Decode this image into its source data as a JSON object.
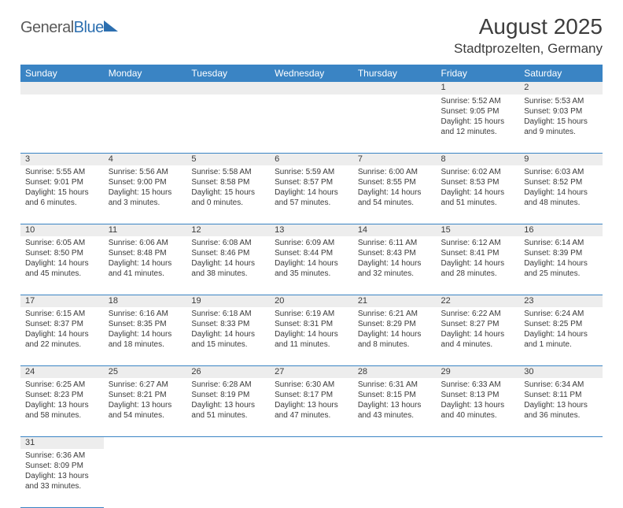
{
  "logo": {
    "part1": "General",
    "part2": "Blue"
  },
  "header": {
    "month_title": "August 2025",
    "location": "Stadtprozelten, Germany"
  },
  "colors": {
    "header_bg": "#3a84c4",
    "header_text": "#ffffff",
    "daynum_bg": "#ededed",
    "cell_border": "#3a84c4",
    "text": "#3a3a3a"
  },
  "day_headers": [
    "Sunday",
    "Monday",
    "Tuesday",
    "Wednesday",
    "Thursday",
    "Friday",
    "Saturday"
  ],
  "weeks": [
    [
      null,
      null,
      null,
      null,
      null,
      {
        "n": "1",
        "sr": "Sunrise: 5:52 AM",
        "ss": "Sunset: 9:05 PM",
        "dl": "Daylight: 15 hours and 12 minutes."
      },
      {
        "n": "2",
        "sr": "Sunrise: 5:53 AM",
        "ss": "Sunset: 9:03 PM",
        "dl": "Daylight: 15 hours and 9 minutes."
      }
    ],
    [
      {
        "n": "3",
        "sr": "Sunrise: 5:55 AM",
        "ss": "Sunset: 9:01 PM",
        "dl": "Daylight: 15 hours and 6 minutes."
      },
      {
        "n": "4",
        "sr": "Sunrise: 5:56 AM",
        "ss": "Sunset: 9:00 PM",
        "dl": "Daylight: 15 hours and 3 minutes."
      },
      {
        "n": "5",
        "sr": "Sunrise: 5:58 AM",
        "ss": "Sunset: 8:58 PM",
        "dl": "Daylight: 15 hours and 0 minutes."
      },
      {
        "n": "6",
        "sr": "Sunrise: 5:59 AM",
        "ss": "Sunset: 8:57 PM",
        "dl": "Daylight: 14 hours and 57 minutes."
      },
      {
        "n": "7",
        "sr": "Sunrise: 6:00 AM",
        "ss": "Sunset: 8:55 PM",
        "dl": "Daylight: 14 hours and 54 minutes."
      },
      {
        "n": "8",
        "sr": "Sunrise: 6:02 AM",
        "ss": "Sunset: 8:53 PM",
        "dl": "Daylight: 14 hours and 51 minutes."
      },
      {
        "n": "9",
        "sr": "Sunrise: 6:03 AM",
        "ss": "Sunset: 8:52 PM",
        "dl": "Daylight: 14 hours and 48 minutes."
      }
    ],
    [
      {
        "n": "10",
        "sr": "Sunrise: 6:05 AM",
        "ss": "Sunset: 8:50 PM",
        "dl": "Daylight: 14 hours and 45 minutes."
      },
      {
        "n": "11",
        "sr": "Sunrise: 6:06 AM",
        "ss": "Sunset: 8:48 PM",
        "dl": "Daylight: 14 hours and 41 minutes."
      },
      {
        "n": "12",
        "sr": "Sunrise: 6:08 AM",
        "ss": "Sunset: 8:46 PM",
        "dl": "Daylight: 14 hours and 38 minutes."
      },
      {
        "n": "13",
        "sr": "Sunrise: 6:09 AM",
        "ss": "Sunset: 8:44 PM",
        "dl": "Daylight: 14 hours and 35 minutes."
      },
      {
        "n": "14",
        "sr": "Sunrise: 6:11 AM",
        "ss": "Sunset: 8:43 PM",
        "dl": "Daylight: 14 hours and 32 minutes."
      },
      {
        "n": "15",
        "sr": "Sunrise: 6:12 AM",
        "ss": "Sunset: 8:41 PM",
        "dl": "Daylight: 14 hours and 28 minutes."
      },
      {
        "n": "16",
        "sr": "Sunrise: 6:14 AM",
        "ss": "Sunset: 8:39 PM",
        "dl": "Daylight: 14 hours and 25 minutes."
      }
    ],
    [
      {
        "n": "17",
        "sr": "Sunrise: 6:15 AM",
        "ss": "Sunset: 8:37 PM",
        "dl": "Daylight: 14 hours and 22 minutes."
      },
      {
        "n": "18",
        "sr": "Sunrise: 6:16 AM",
        "ss": "Sunset: 8:35 PM",
        "dl": "Daylight: 14 hours and 18 minutes."
      },
      {
        "n": "19",
        "sr": "Sunrise: 6:18 AM",
        "ss": "Sunset: 8:33 PM",
        "dl": "Daylight: 14 hours and 15 minutes."
      },
      {
        "n": "20",
        "sr": "Sunrise: 6:19 AM",
        "ss": "Sunset: 8:31 PM",
        "dl": "Daylight: 14 hours and 11 minutes."
      },
      {
        "n": "21",
        "sr": "Sunrise: 6:21 AM",
        "ss": "Sunset: 8:29 PM",
        "dl": "Daylight: 14 hours and 8 minutes."
      },
      {
        "n": "22",
        "sr": "Sunrise: 6:22 AM",
        "ss": "Sunset: 8:27 PM",
        "dl": "Daylight: 14 hours and 4 minutes."
      },
      {
        "n": "23",
        "sr": "Sunrise: 6:24 AM",
        "ss": "Sunset: 8:25 PM",
        "dl": "Daylight: 14 hours and 1 minute."
      }
    ],
    [
      {
        "n": "24",
        "sr": "Sunrise: 6:25 AM",
        "ss": "Sunset: 8:23 PM",
        "dl": "Daylight: 13 hours and 58 minutes."
      },
      {
        "n": "25",
        "sr": "Sunrise: 6:27 AM",
        "ss": "Sunset: 8:21 PM",
        "dl": "Daylight: 13 hours and 54 minutes."
      },
      {
        "n": "26",
        "sr": "Sunrise: 6:28 AM",
        "ss": "Sunset: 8:19 PM",
        "dl": "Daylight: 13 hours and 51 minutes."
      },
      {
        "n": "27",
        "sr": "Sunrise: 6:30 AM",
        "ss": "Sunset: 8:17 PM",
        "dl": "Daylight: 13 hours and 47 minutes."
      },
      {
        "n": "28",
        "sr": "Sunrise: 6:31 AM",
        "ss": "Sunset: 8:15 PM",
        "dl": "Daylight: 13 hours and 43 minutes."
      },
      {
        "n": "29",
        "sr": "Sunrise: 6:33 AM",
        "ss": "Sunset: 8:13 PM",
        "dl": "Daylight: 13 hours and 40 minutes."
      },
      {
        "n": "30",
        "sr": "Sunrise: 6:34 AM",
        "ss": "Sunset: 8:11 PM",
        "dl": "Daylight: 13 hours and 36 minutes."
      }
    ],
    [
      {
        "n": "31",
        "sr": "Sunrise: 6:36 AM",
        "ss": "Sunset: 8:09 PM",
        "dl": "Daylight: 13 hours and 33 minutes."
      },
      null,
      null,
      null,
      null,
      null,
      null
    ]
  ]
}
